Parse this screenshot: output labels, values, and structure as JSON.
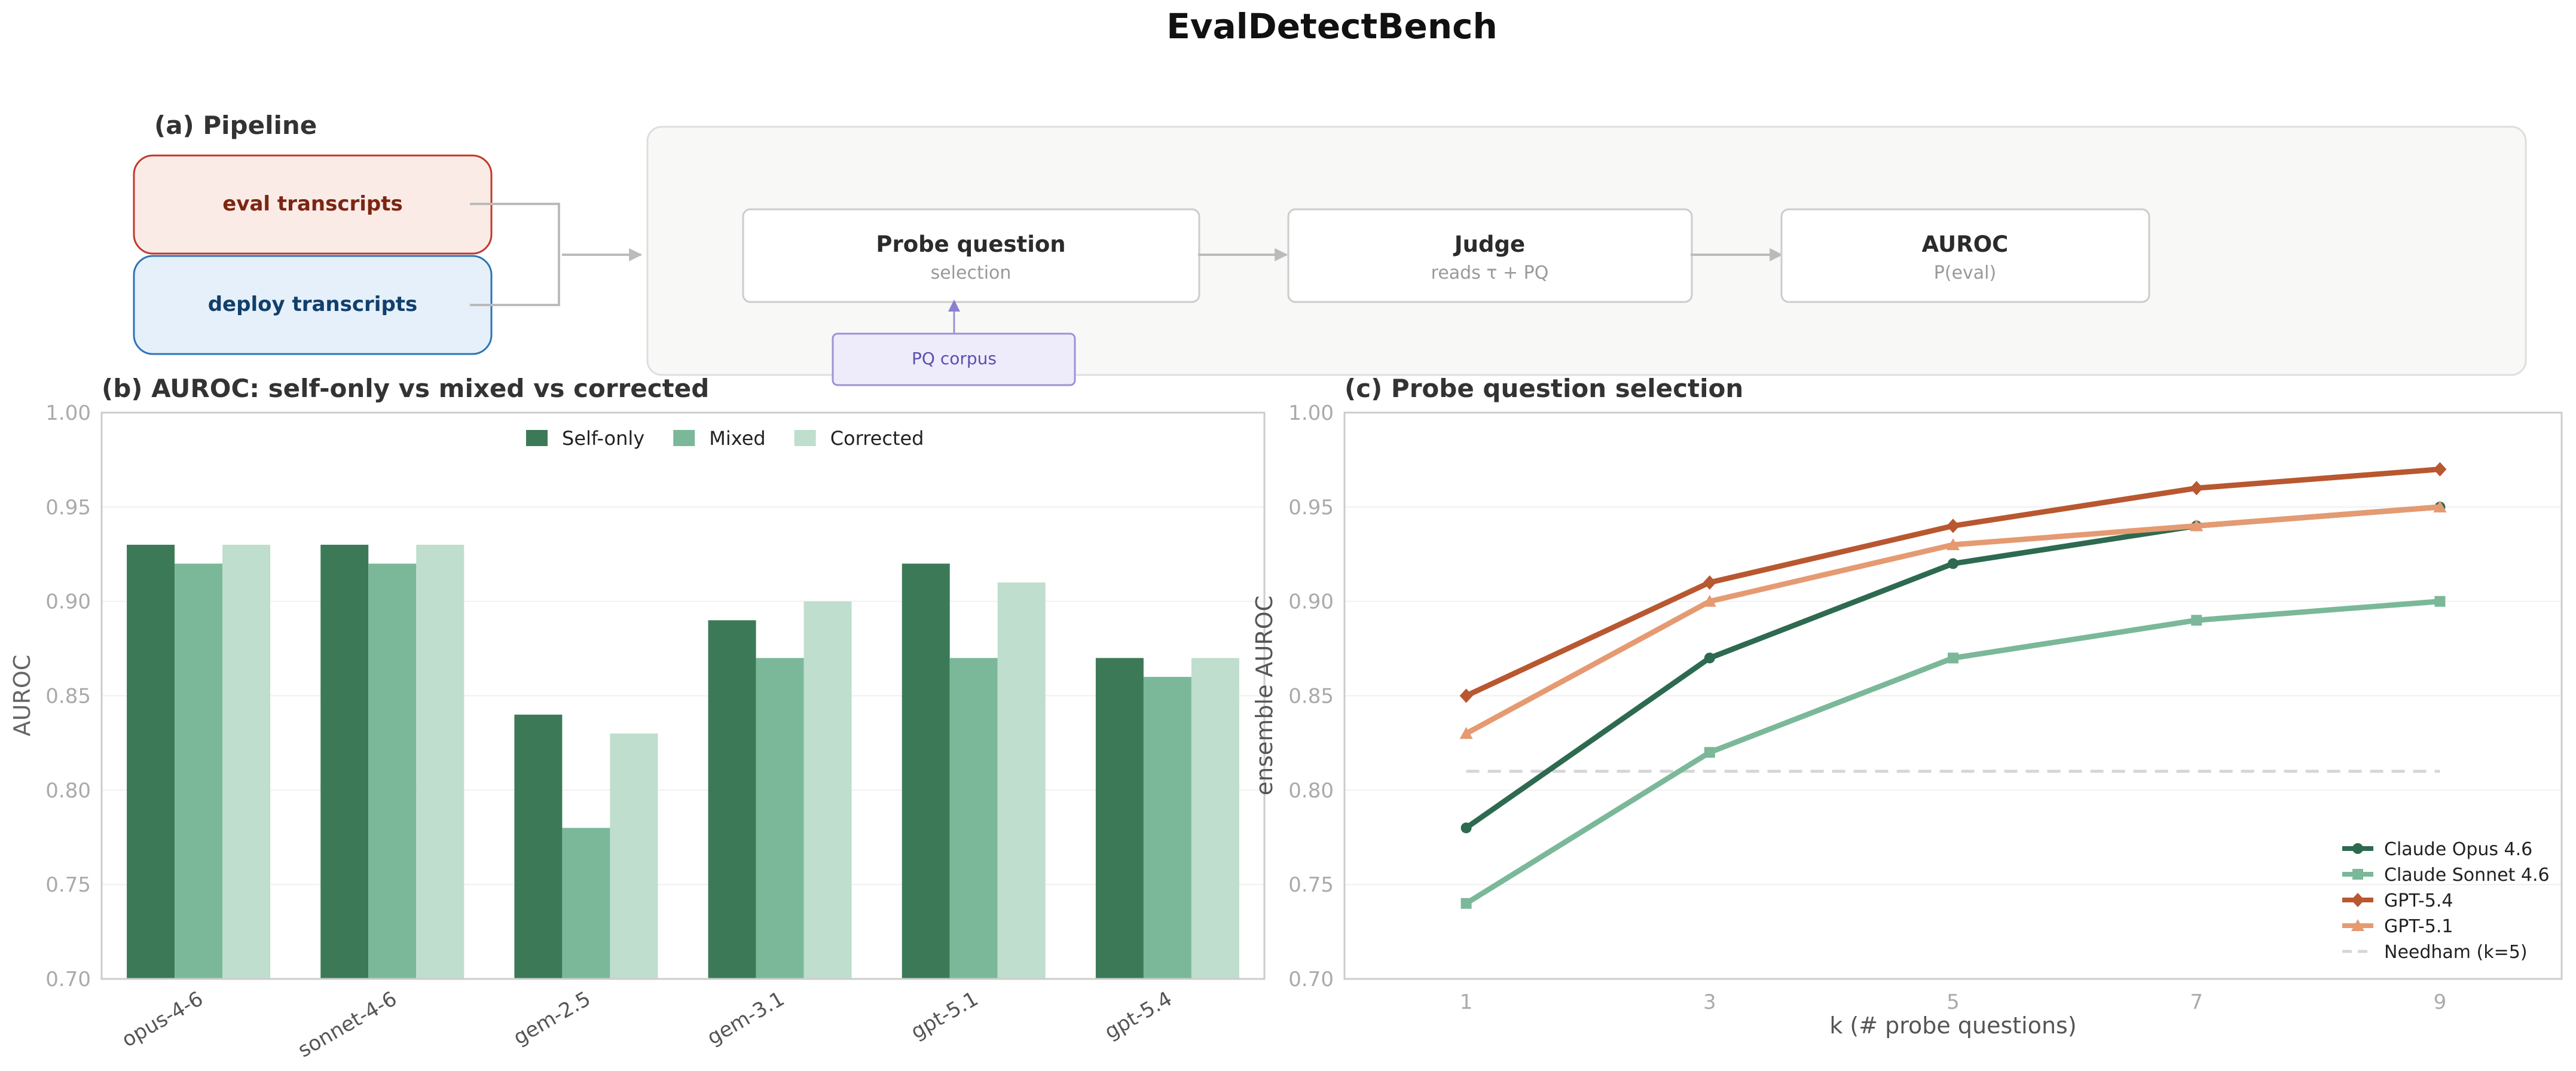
{
  "title": "EvalDetectBench",
  "pipeline": {
    "title": "(a) Pipeline",
    "inputs": [
      {
        "label": "eval transcripts",
        "fill": "#fbebe6",
        "stroke": "#c0392b",
        "text_color": "#7b2613"
      },
      {
        "label": "deploy transcripts",
        "fill": "#e5f0fb",
        "stroke": "#2e74b5",
        "text_color": "#123f6b"
      }
    ],
    "stages": [
      {
        "title": "Probe question",
        "subtitle": "selection"
      },
      {
        "title": "Judge",
        "subtitle": "reads τ + PQ"
      },
      {
        "title": "AUROC",
        "subtitle": "P(eval)"
      }
    ],
    "corpus_label": "PQ corpus",
    "corpus_fill": "#eeecfb",
    "corpus_stroke": "#9b93d6",
    "corpus_text_color": "#5a4fb0"
  },
  "chart_data": [
    {
      "type": "bar",
      "title": "(b) AUROC: self-only vs mixed vs corrected",
      "xlabel": "",
      "ylabel": "AUROC",
      "ylim": [
        0.7,
        1.0
      ],
      "yticks": [
        "0.70",
        "0.75",
        "0.80",
        "0.85",
        "0.90",
        "0.95",
        "1.00"
      ],
      "grid": true,
      "legend_position": "top-center",
      "categories": [
        "opus-4-6",
        "sonnet-4-6",
        "gem-2.5",
        "gem-3.1",
        "gpt-5.1",
        "gpt-5.4"
      ],
      "series": [
        {
          "name": "Self-only",
          "color": "#3c7a57",
          "values": [
            0.93,
            0.93,
            0.84,
            0.89,
            0.92,
            0.87
          ]
        },
        {
          "name": "Mixed",
          "color": "#7ab899",
          "values": [
            0.92,
            0.92,
            0.78,
            0.87,
            0.87,
            0.86
          ]
        },
        {
          "name": "Corrected",
          "color": "#bfdecd",
          "values": [
            0.93,
            0.93,
            0.83,
            0.9,
            0.91,
            0.87
          ]
        }
      ]
    },
    {
      "type": "line",
      "title": "(c) Probe question selection",
      "xlabel": "k (# probe questions)",
      "ylabel": "ensemble AUROC",
      "ylim": [
        0.7,
        1.0
      ],
      "xlim": [
        0,
        10
      ],
      "yticks": [
        "0.70",
        "0.75",
        "0.80",
        "0.85",
        "0.90",
        "0.95",
        "1.00"
      ],
      "xticks": [
        "1",
        "3",
        "5",
        "7",
        "9"
      ],
      "x": [
        1,
        3,
        5,
        7,
        9
      ],
      "grid": true,
      "legend_position": "lower-right",
      "series": [
        {
          "name": "Claude Opus 4.6",
          "color": "#2d6a4f",
          "marker": "circle",
          "values": [
            0.78,
            0.87,
            0.92,
            0.94,
            0.95
          ]
        },
        {
          "name": "Claude Sonnet 4.6",
          "color": "#7ab899",
          "marker": "square",
          "values": [
            0.74,
            0.82,
            0.87,
            0.89,
            0.9
          ]
        },
        {
          "name": "GPT-5.4",
          "color": "#b85730",
          "marker": "diamond",
          "values": [
            0.85,
            0.91,
            0.94,
            0.96,
            0.97
          ]
        },
        {
          "name": "GPT-5.1",
          "color": "#e59a72",
          "marker": "triangle",
          "values": [
            0.83,
            0.9,
            0.93,
            0.94,
            0.95
          ]
        }
      ],
      "reference": {
        "name": "Needham (k=5)",
        "value": 0.81,
        "x_range": [
          1,
          9
        ],
        "color": "#d6d6d6"
      }
    }
  ]
}
